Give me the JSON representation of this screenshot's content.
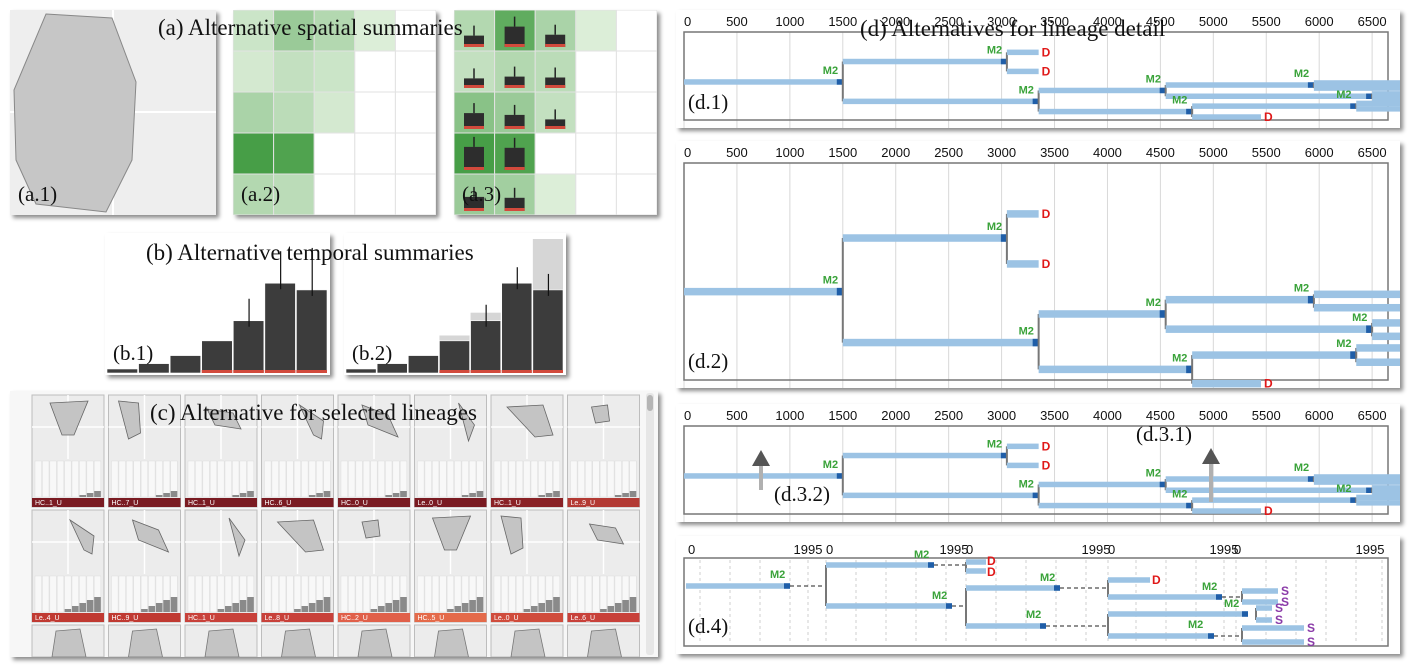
{
  "spatial": {
    "title": "(a) Alternative spatial summaries",
    "labels": [
      "(a.1)",
      "(a.2)",
      "(a.3)"
    ],
    "heat": [
      [
        0.15,
        0.45,
        0.3,
        0.05,
        0.0
      ],
      [
        0.1,
        0.2,
        0.15,
        0.0,
        0.0
      ],
      [
        0.35,
        0.25,
        0.1,
        0.0,
        0.0
      ],
      [
        0.95,
        0.9,
        0.0,
        0.0,
        0.0
      ],
      [
        0.3,
        0.25,
        0.0,
        0.0,
        0.0
      ]
    ],
    "heat3": [
      [
        0.3,
        0.8,
        0.35,
        0.05,
        0.0
      ],
      [
        0.2,
        0.3,
        0.25,
        0.0,
        0.0
      ],
      [
        0.55,
        0.45,
        0.2,
        0.0,
        0.0
      ],
      [
        0.95,
        0.9,
        0.0,
        0.0,
        0.0
      ],
      [
        0.45,
        0.4,
        0.05,
        0.0,
        0.0
      ]
    ],
    "colors": {
      "heat_dark": "#3f9a3f",
      "heat_light": "#e4f2e0",
      "shape": "#c6c6c6"
    }
  },
  "temporal": {
    "title": "(b) Alternative temporal summaries",
    "labels": [
      "(b.1)",
      "(b.2)"
    ],
    "bars": [
      0.03,
      0.07,
      0.13,
      0.24,
      0.39,
      0.67,
      0.62
    ],
    "envelope": [
      0.03,
      0.07,
      0.13,
      0.28,
      0.45,
      0.6,
      1.0
    ],
    "colors": {
      "bar": "#3c3c3c",
      "envelope": "#d6d6d6",
      "accent": "#d24a3c"
    }
  },
  "gallery": {
    "title": "(c) Alternative for selected lineages",
    "rows": [
      [
        "HC..1_U",
        "HC..7_U",
        "HC..1_U",
        "HC..6_U",
        "HC..0_U",
        "Le..0_U",
        "HC..1_U",
        "Le..9_U"
      ],
      [
        "Le..4_U",
        "HC..9_U",
        "HC..1_U",
        "Le..8_U",
        "HC..2_U",
        "HC..5_U",
        "Le..0_U",
        "Le..6_U"
      ]
    ],
    "label_colors": [
      [
        "#7a1b22",
        "#7a1b22",
        "#7a1b22",
        "#7a1b22",
        "#7a1b22",
        "#7a1b22",
        "#8a2226",
        "#b33a34"
      ],
      [
        "#c03a32",
        "#c03a32",
        "#c8413a",
        "#c8413a",
        "#e0604a",
        "#e46a4a",
        "#d04c3c",
        "#c8413a"
      ]
    ]
  },
  "lineage": {
    "title": "(d) Alternatives for lineage detail",
    "labels": [
      "(d.1)",
      "(d.2)",
      "(d.3.2)",
      "(d.3.1)",
      "(d.4)"
    ],
    "axis_ticks": [
      "0",
      "500",
      "1000",
      "1500",
      "2000",
      "2500",
      "3000",
      "3500",
      "4000",
      "4500",
      "5000",
      "5500",
      "6000",
      "6500"
    ],
    "d4_ticks": [
      "0",
      "1995",
      "0",
      "1995",
      "0",
      "1995",
      "0",
      "1995",
      "0",
      "1995"
    ],
    "event_m2": "M2",
    "event_d": "D",
    "event_s": "S",
    "colors": {
      "branch": "#9cc3e4",
      "node": "#1f5ea8",
      "m2": "#3aa33a",
      "d": "#e01818",
      "s": "#8a3aa8"
    }
  }
}
